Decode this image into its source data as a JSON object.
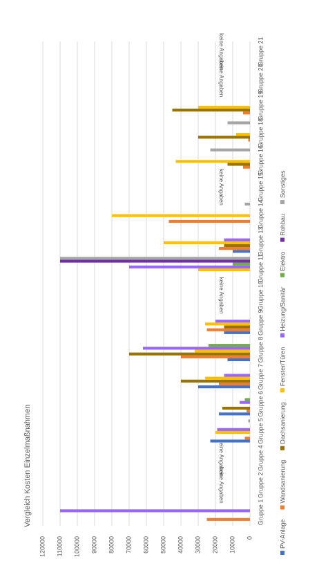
{
  "chart_data": {
    "type": "bar",
    "title": "Vergleich Kosten Einzelmaßnahmen",
    "categories": [
      "Gruppe 1",
      "Gruppe 2",
      "Gruppe 4",
      "Gruppe 5",
      "Gruppe 6",
      "Gruppe 7",
      "Gruppe 8",
      "Gruppe 9",
      "Gruppe 10",
      "Gruppe 11",
      "Gruppe 13",
      "Gruppe 14",
      "Gruppe 15",
      "Gruppe 16",
      "Gruppe 18",
      "Gruppe 19",
      "Gruppe 20",
      "Gruppe 21"
    ],
    "annotations": [
      null,
      "keine Angaben",
      "keine Angaben",
      null,
      null,
      null,
      null,
      null,
      "keine Angaben",
      null,
      null,
      null,
      "keine Angaben",
      null,
      null,
      null,
      "keine Angaben",
      "keine Angaben"
    ],
    "series": [
      {
        "name": "PV-Anlage",
        "color": "#4472c4",
        "values": [
          null,
          null,
          null,
          23000,
          18000,
          30000,
          13000,
          15000,
          null,
          null,
          10000,
          null,
          null,
          null,
          null,
          null,
          null,
          null
        ]
      },
      {
        "name": "Wandsanierung",
        "color": "#ed7d31",
        "values": [
          25000,
          null,
          null,
          3000,
          2000,
          18000,
          40000,
          25000,
          null,
          null,
          18000,
          47000,
          null,
          4000,
          1000,
          4000,
          null,
          null
        ]
      },
      {
        "name": "Dachsanierung",
        "color": "#997300",
        "values": [
          null,
          null,
          null,
          null,
          16000,
          40000,
          70000,
          15000,
          null,
          null,
          15000,
          null,
          null,
          13000,
          30000,
          45000,
          null,
          null
        ]
      },
      {
        "name": "Fenster/Türen",
        "color": "#ffc000",
        "values": [
          null,
          null,
          null,
          20000,
          null,
          26000,
          32000,
          26000,
          null,
          30000,
          50000,
          80000,
          null,
          43000,
          8000,
          30000,
          null,
          null
        ]
      },
      {
        "name": "Heizung/Sanitär",
        "color": "#9966ff",
        "values": [
          110000,
          null,
          null,
          19000,
          6000,
          15000,
          62000,
          20000,
          null,
          70000,
          15000,
          null,
          null,
          null,
          null,
          null,
          null,
          null
        ]
      },
      {
        "name": "Elektro",
        "color": "#70ad47",
        "values": [
          null,
          null,
          null,
          null,
          3000,
          null,
          24000,
          null,
          null,
          10000,
          null,
          null,
          null,
          null,
          null,
          null,
          null,
          null
        ]
      },
      {
        "name": "Rohbau",
        "color": "#7030a0",
        "values": [
          null,
          null,
          null,
          null,
          null,
          null,
          null,
          null,
          null,
          110000,
          null,
          null,
          null,
          null,
          null,
          null,
          null,
          null
        ]
      },
      {
        "name": "Sonstiges",
        "color": "#a5a5a5",
        "values": [
          null,
          null,
          null,
          1000,
          null,
          null,
          null,
          null,
          null,
          110000,
          null,
          3000,
          null,
          23000,
          13000,
          null,
          null,
          null
        ]
      }
    ],
    "ylim": [
      0,
      120000
    ],
    "yticks": [
      0,
      10000,
      20000,
      30000,
      40000,
      50000,
      60000,
      70000,
      80000,
      90000,
      100000,
      110000,
      120000
    ],
    "grid": true
  }
}
